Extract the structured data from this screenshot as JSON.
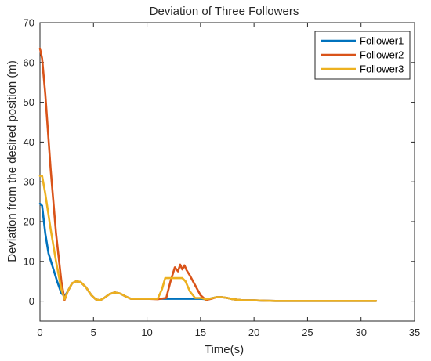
{
  "chart_data": {
    "type": "line",
    "title": "Deviation of Three Followers",
    "xlabel": "Time(s)",
    "ylabel": "Deviation from the desired position (m)",
    "xlim": [
      0,
      35
    ],
    "ylim": [
      -5,
      70
    ],
    "xticks": [
      0,
      5,
      10,
      15,
      20,
      25,
      30,
      35
    ],
    "yticks": [
      0,
      10,
      20,
      30,
      40,
      50,
      60,
      70
    ],
    "grid": false,
    "legend_position": "top-right",
    "series": [
      {
        "name": "Follower1",
        "color": "#0072BD",
        "x": [
          0,
          0.2,
          0.5,
          0.8,
          1.2,
          1.6,
          2.0,
          2.3,
          2.6,
          3.0,
          3.4,
          3.8,
          4.3,
          4.8,
          5.2,
          5.6,
          6.0,
          6.5,
          7.0,
          7.5,
          8.0,
          8.5,
          9.0,
          10.0,
          11.0,
          11.5,
          12.0,
          12.5,
          13.0,
          13.3,
          13.6,
          14.0,
          14.5,
          15.0,
          15.5,
          16.0,
          16.5,
          17.0,
          17.5,
          18.0,
          19.0,
          20.0,
          21.0,
          22.0,
          25.0,
          31.4
        ],
        "y": [
          24.5,
          24,
          17,
          12,
          8.5,
          5,
          2,
          1.2,
          2.5,
          4.5,
          5.0,
          4.8,
          3.5,
          1.5,
          0.5,
          0.2,
          0.8,
          1.8,
          2.2,
          1.9,
          1.2,
          0.6,
          0.6,
          0.6,
          0.6,
          0.6,
          0.6,
          0.6,
          0.6,
          0.6,
          0.6,
          0.6,
          0.6,
          0.6,
          0.5,
          0.7,
          1.0,
          1.0,
          0.8,
          0.5,
          0.2,
          0.2,
          0.1,
          0.05,
          0.05,
          0.05
        ]
      },
      {
        "name": "Follower2",
        "color": "#D95319",
        "x": [
          0,
          0.2,
          0.5,
          1.0,
          1.5,
          2.0,
          2.3,
          2.6,
          3.0,
          3.4,
          3.8,
          4.3,
          4.8,
          5.2,
          5.6,
          6.0,
          6.5,
          7.0,
          7.5,
          8.0,
          8.5,
          9.0,
          10.0,
          11.0,
          11.8,
          12.2,
          12.6,
          12.9,
          13.1,
          13.3,
          13.5,
          13.7,
          14.0,
          14.5,
          15.0,
          15.5,
          16.0,
          16.5,
          17.0,
          17.5,
          18.0,
          19.0,
          20.0,
          21.0,
          22.0,
          25.0,
          31.4
        ],
        "y": [
          63.5,
          61,
          52,
          33,
          17,
          5,
          0.3,
          2.5,
          4.5,
          5.0,
          4.8,
          3.5,
          1.5,
          0.5,
          0.2,
          0.8,
          1.8,
          2.2,
          1.9,
          1.2,
          0.6,
          0.6,
          0.6,
          0.5,
          0.8,
          5.0,
          8.5,
          7.5,
          9.2,
          8.0,
          9.0,
          7.8,
          6.5,
          4.0,
          1.5,
          0.3,
          0.6,
          1.0,
          1.0,
          0.8,
          0.5,
          0.2,
          0.2,
          0.1,
          0.05,
          0.05,
          0.05
        ]
      },
      {
        "name": "Follower3",
        "color": "#EDB120",
        "x": [
          0,
          0.2,
          0.5,
          1.0,
          1.5,
          2.0,
          2.3,
          2.6,
          3.0,
          3.4,
          3.8,
          4.3,
          4.8,
          5.2,
          5.6,
          6.0,
          6.5,
          7.0,
          7.5,
          8.0,
          8.5,
          9.0,
          10.0,
          11.0,
          11.4,
          11.7,
          12.0,
          12.5,
          13.0,
          13.3,
          13.6,
          14.0,
          14.5,
          15.0,
          15.5,
          16.0,
          16.5,
          17.0,
          17.5,
          18.0,
          19.0,
          20.0,
          21.0,
          22.0,
          25.0,
          31.4
        ],
        "y": [
          31.5,
          31.5,
          27,
          18,
          10,
          3,
          0.5,
          2.5,
          4.5,
          5.0,
          4.8,
          3.5,
          1.5,
          0.5,
          0.2,
          0.8,
          1.8,
          2.2,
          1.9,
          1.2,
          0.6,
          0.6,
          0.6,
          0.6,
          3.0,
          5.8,
          5.8,
          5.8,
          5.8,
          5.8,
          5.0,
          2.5,
          0.8,
          0.8,
          0.5,
          0.7,
          1.0,
          1.0,
          0.8,
          0.5,
          0.2,
          0.2,
          0.1,
          0.05,
          0.05,
          0.05
        ]
      }
    ]
  }
}
